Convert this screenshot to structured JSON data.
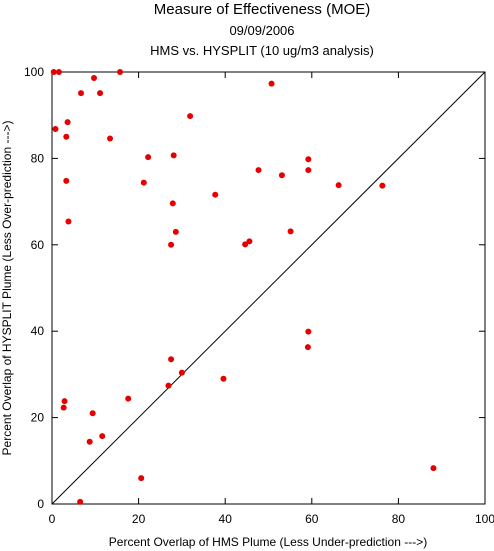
{
  "chart_data": {
    "type": "scatter",
    "title": "Measure of Effectiveness (MOE)",
    "subtitle_date": "09/09/2006",
    "subtitle": "HMS vs. HYSPLIT  (10 ug/m3 analysis)",
    "xlabel": "Percent Overlap of HMS Plume (Less Under-prediction --->)",
    "ylabel": "Percent Overlap of HYSPLIT Plume (Less Over-prediction --->)",
    "xlim": [
      0,
      100
    ],
    "ylim": [
      0,
      100
    ],
    "xticks": [
      "0",
      "20",
      "40",
      "60",
      "80",
      "100"
    ],
    "yticks": [
      "0",
      "20",
      "40",
      "60",
      "80",
      "100"
    ],
    "diagonal_reference_line": true,
    "grid": false,
    "marker_color": "#e60000",
    "points": [
      {
        "x": 0.4,
        "y": 100
      },
      {
        "x": 1.6,
        "y": 100
      },
      {
        "x": 15.7,
        "y": 100
      },
      {
        "x": 9.7,
        "y": 98.6
      },
      {
        "x": 6.7,
        "y": 95.1
      },
      {
        "x": 11.1,
        "y": 95.1
      },
      {
        "x": 50.7,
        "y": 97.3
      },
      {
        "x": 0.8,
        "y": 86.8
      },
      {
        "x": 3.6,
        "y": 88.4
      },
      {
        "x": 3.3,
        "y": 85.0
      },
      {
        "x": 13.4,
        "y": 84.6
      },
      {
        "x": 31.9,
        "y": 89.8
      },
      {
        "x": 22.2,
        "y": 80.3
      },
      {
        "x": 28.1,
        "y": 80.7
      },
      {
        "x": 59.2,
        "y": 79.8
      },
      {
        "x": 47.7,
        "y": 77.3
      },
      {
        "x": 53.1,
        "y": 76.1
      },
      {
        "x": 59.2,
        "y": 77.3
      },
      {
        "x": 3.3,
        "y": 74.8
      },
      {
        "x": 21.2,
        "y": 74.4
      },
      {
        "x": 66.2,
        "y": 73.8
      },
      {
        "x": 76.3,
        "y": 73.7
      },
      {
        "x": 37.7,
        "y": 71.6
      },
      {
        "x": 27.9,
        "y": 69.6
      },
      {
        "x": 3.8,
        "y": 65.4
      },
      {
        "x": 28.6,
        "y": 63.0
      },
      {
        "x": 27.5,
        "y": 60.0
      },
      {
        "x": 44.6,
        "y": 60.1
      },
      {
        "x": 45.6,
        "y": 60.8
      },
      {
        "x": 55.1,
        "y": 63.1
      },
      {
        "x": 59.2,
        "y": 39.9
      },
      {
        "x": 59.1,
        "y": 36.3
      },
      {
        "x": 27.5,
        "y": 33.5
      },
      {
        "x": 30.0,
        "y": 30.4
      },
      {
        "x": 26.9,
        "y": 27.4
      },
      {
        "x": 39.6,
        "y": 29.0
      },
      {
        "x": 17.6,
        "y": 24.4
      },
      {
        "x": 2.9,
        "y": 23.8
      },
      {
        "x": 2.7,
        "y": 22.3
      },
      {
        "x": 9.4,
        "y": 21.0
      },
      {
        "x": 11.6,
        "y": 15.7
      },
      {
        "x": 8.7,
        "y": 14.4
      },
      {
        "x": 20.6,
        "y": 6.0
      },
      {
        "x": 88.1,
        "y": 8.3
      },
      {
        "x": 6.5,
        "y": 0.5
      }
    ]
  }
}
